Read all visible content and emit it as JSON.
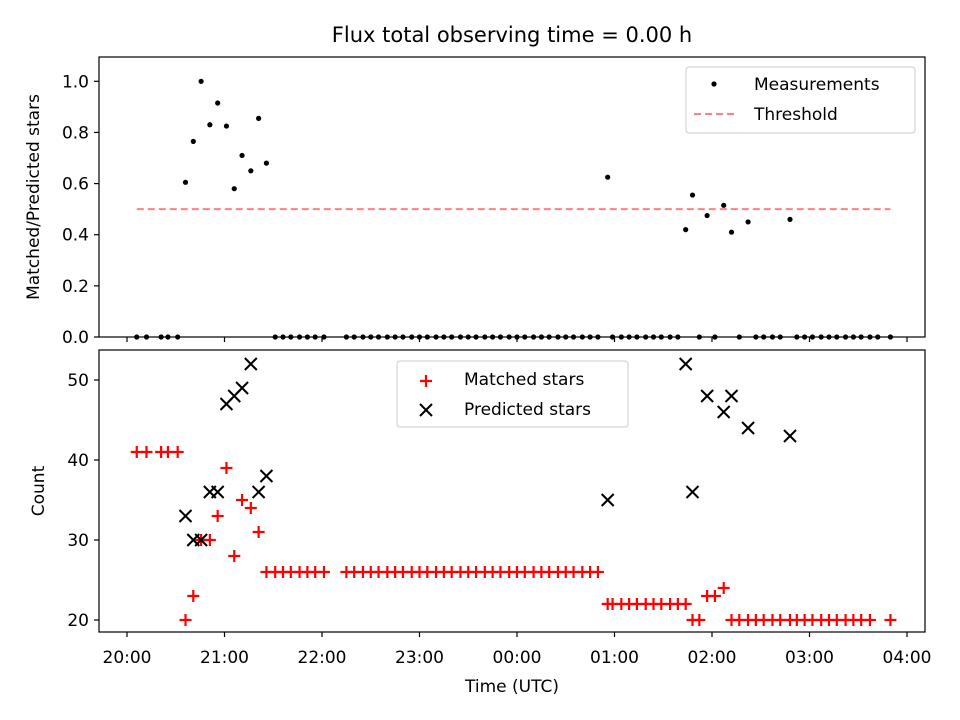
{
  "figure": {
    "title": "Flux total observing time = 0.00 h",
    "xlabel": "Time (UTC)",
    "x_ticks": [
      "20:00",
      "21:00",
      "22:00",
      "23:00",
      "00:00",
      "01:00",
      "02:00",
      "03:00",
      "04:00"
    ]
  },
  "chart_data": [
    {
      "type": "scatter",
      "ylabel": "Matched/Predicted stars",
      "ylim": [
        0,
        1.05
      ],
      "xlim_hours": [
        20.0,
        28.0
      ],
      "y_ticks": [
        "0.0",
        "0.2",
        "0.4",
        "0.6",
        "0.8",
        "1.0"
      ],
      "grid": false,
      "legend_position": "top-right",
      "legend": [
        "Measurements",
        "Threshold"
      ],
      "series": [
        {
          "name": "Measurements",
          "marker": "dot",
          "color": "#000000",
          "points": [
            [
              20.1,
              0
            ],
            [
              20.2,
              0
            ],
            [
              20.35,
              0
            ],
            [
              20.42,
              0
            ],
            [
              20.52,
              0
            ],
            [
              20.6,
              0.605
            ],
            [
              20.68,
              0.765
            ],
            [
              20.76,
              1.0
            ],
            [
              20.85,
              0.83
            ],
            [
              20.93,
              0.915
            ],
            [
              21.02,
              0.825
            ],
            [
              21.1,
              0.58
            ],
            [
              21.18,
              0.71
            ],
            [
              21.27,
              0.65
            ],
            [
              21.35,
              0.855
            ],
            [
              21.43,
              0.68
            ],
            [
              21.52,
              0
            ],
            [
              21.6,
              0
            ],
            [
              21.68,
              0
            ],
            [
              21.77,
              0
            ],
            [
              21.85,
              0
            ],
            [
              21.93,
              0
            ],
            [
              22.02,
              0
            ],
            [
              22.25,
              0
            ],
            [
              22.33,
              0
            ],
            [
              22.42,
              0
            ],
            [
              22.5,
              0
            ],
            [
              22.58,
              0
            ],
            [
              22.67,
              0
            ],
            [
              22.75,
              0
            ],
            [
              22.83,
              0
            ],
            [
              22.92,
              0
            ],
            [
              23.0,
              0
            ],
            [
              23.08,
              0
            ],
            [
              23.17,
              0
            ],
            [
              23.25,
              0
            ],
            [
              23.33,
              0
            ],
            [
              23.42,
              0
            ],
            [
              23.5,
              0
            ],
            [
              23.58,
              0
            ],
            [
              23.67,
              0
            ],
            [
              23.75,
              0
            ],
            [
              23.83,
              0
            ],
            [
              23.92,
              0
            ],
            [
              24.0,
              0
            ],
            [
              24.08,
              0
            ],
            [
              24.17,
              0
            ],
            [
              24.25,
              0
            ],
            [
              24.33,
              0
            ],
            [
              24.42,
              0
            ],
            [
              24.5,
              0
            ],
            [
              24.58,
              0
            ],
            [
              24.67,
              0
            ],
            [
              24.75,
              0
            ],
            [
              24.83,
              0
            ],
            [
              24.93,
              0.625
            ],
            [
              24.98,
              0
            ],
            [
              25.07,
              0
            ],
            [
              25.15,
              0
            ],
            [
              25.23,
              0
            ],
            [
              25.32,
              0
            ],
            [
              25.4,
              0
            ],
            [
              25.48,
              0
            ],
            [
              25.57,
              0
            ],
            [
              25.65,
              0
            ],
            [
              25.73,
              0.42
            ],
            [
              25.8,
              0.555
            ],
            [
              25.87,
              0
            ],
            [
              25.95,
              0.475
            ],
            [
              26.03,
              0
            ],
            [
              26.12,
              0.515
            ],
            [
              26.2,
              0.41
            ],
            [
              26.28,
              0
            ],
            [
              26.37,
              0.45
            ],
            [
              26.45,
              0
            ],
            [
              26.53,
              0
            ],
            [
              26.62,
              0
            ],
            [
              26.7,
              0
            ],
            [
              26.8,
              0.46
            ],
            [
              26.87,
              0
            ],
            [
              26.95,
              0
            ],
            [
              27.03,
              0
            ],
            [
              27.12,
              0
            ],
            [
              27.2,
              0
            ],
            [
              27.28,
              0
            ],
            [
              27.37,
              0
            ],
            [
              27.45,
              0
            ],
            [
              27.53,
              0
            ],
            [
              27.62,
              0
            ],
            [
              27.7,
              0
            ],
            [
              27.83,
              0
            ]
          ]
        },
        {
          "name": "Threshold",
          "line": "dashed",
          "color": "#ff8080",
          "points": [
            [
              20.1,
              0.5
            ],
            [
              27.83,
              0.5
            ]
          ]
        }
      ]
    },
    {
      "type": "scatter",
      "ylabel": "Count",
      "ylim": [
        18.5,
        53.5
      ],
      "xlim_hours": [
        20.0,
        28.0
      ],
      "y_ticks": [
        "20",
        "30",
        "40",
        "50"
      ],
      "grid": false,
      "legend_position": "top-center",
      "legend": [
        "Matched stars",
        "Predicted stars"
      ],
      "series": [
        {
          "name": "Matched stars",
          "marker": "plus",
          "color": "#ff0000",
          "points": [
            [
              20.1,
              41
            ],
            [
              20.2,
              41
            ],
            [
              20.35,
              41
            ],
            [
              20.42,
              41
            ],
            [
              20.52,
              41
            ],
            [
              20.6,
              20
            ],
            [
              20.68,
              23
            ],
            [
              20.76,
              30
            ],
            [
              20.85,
              30
            ],
            [
              20.93,
              33
            ],
            [
              21.02,
              39
            ],
            [
              21.1,
              28
            ],
            [
              21.18,
              35
            ],
            [
              21.27,
              34
            ],
            [
              21.35,
              31
            ],
            [
              21.43,
              26
            ],
            [
              21.52,
              26
            ],
            [
              21.6,
              26
            ],
            [
              21.68,
              26
            ],
            [
              21.77,
              26
            ],
            [
              21.85,
              26
            ],
            [
              21.93,
              26
            ],
            [
              22.02,
              26
            ],
            [
              22.25,
              26
            ],
            [
              22.33,
              26
            ],
            [
              22.42,
              26
            ],
            [
              22.5,
              26
            ],
            [
              22.58,
              26
            ],
            [
              22.67,
              26
            ],
            [
              22.75,
              26
            ],
            [
              22.83,
              26
            ],
            [
              22.92,
              26
            ],
            [
              23.0,
              26
            ],
            [
              23.08,
              26
            ],
            [
              23.17,
              26
            ],
            [
              23.25,
              26
            ],
            [
              23.33,
              26
            ],
            [
              23.42,
              26
            ],
            [
              23.5,
              26
            ],
            [
              23.58,
              26
            ],
            [
              23.67,
              26
            ],
            [
              23.75,
              26
            ],
            [
              23.83,
              26
            ],
            [
              23.92,
              26
            ],
            [
              24.0,
              26
            ],
            [
              24.08,
              26
            ],
            [
              24.17,
              26
            ],
            [
              24.25,
              26
            ],
            [
              24.33,
              26
            ],
            [
              24.42,
              26
            ],
            [
              24.5,
              26
            ],
            [
              24.58,
              26
            ],
            [
              24.67,
              26
            ],
            [
              24.75,
              26
            ],
            [
              24.83,
              26
            ],
            [
              24.93,
              22
            ],
            [
              24.98,
              22
            ],
            [
              25.07,
              22
            ],
            [
              25.15,
              22
            ],
            [
              25.23,
              22
            ],
            [
              25.32,
              22
            ],
            [
              25.4,
              22
            ],
            [
              25.48,
              22
            ],
            [
              25.57,
              22
            ],
            [
              25.65,
              22
            ],
            [
              25.73,
              22
            ],
            [
              25.8,
              20
            ],
            [
              25.87,
              20
            ],
            [
              25.95,
              23
            ],
            [
              26.03,
              23
            ],
            [
              26.12,
              24
            ],
            [
              26.2,
              20
            ],
            [
              26.28,
              20
            ],
            [
              26.37,
              20
            ],
            [
              26.45,
              20
            ],
            [
              26.53,
              20
            ],
            [
              26.62,
              20
            ],
            [
              26.7,
              20
            ],
            [
              26.8,
              20
            ],
            [
              26.87,
              20
            ],
            [
              26.95,
              20
            ],
            [
              27.03,
              20
            ],
            [
              27.12,
              20
            ],
            [
              27.2,
              20
            ],
            [
              27.28,
              20
            ],
            [
              27.37,
              20
            ],
            [
              27.45,
              20
            ],
            [
              27.53,
              20
            ],
            [
              27.62,
              20
            ],
            [
              27.83,
              20
            ]
          ]
        },
        {
          "name": "Predicted stars",
          "marker": "x",
          "color": "#000000",
          "points": [
            [
              20.6,
              33
            ],
            [
              20.68,
              30
            ],
            [
              20.76,
              30
            ],
            [
              20.85,
              36
            ],
            [
              20.93,
              36
            ],
            [
              21.02,
              47
            ],
            [
              21.1,
              48
            ],
            [
              21.18,
              49
            ],
            [
              21.27,
              52
            ],
            [
              21.35,
              36
            ],
            [
              21.43,
              38
            ],
            [
              24.93,
              35
            ],
            [
              25.73,
              52
            ],
            [
              25.8,
              36
            ],
            [
              25.95,
              48
            ],
            [
              26.12,
              46
            ],
            [
              26.2,
              48
            ],
            [
              26.37,
              44
            ],
            [
              26.8,
              43
            ]
          ]
        }
      ]
    }
  ]
}
